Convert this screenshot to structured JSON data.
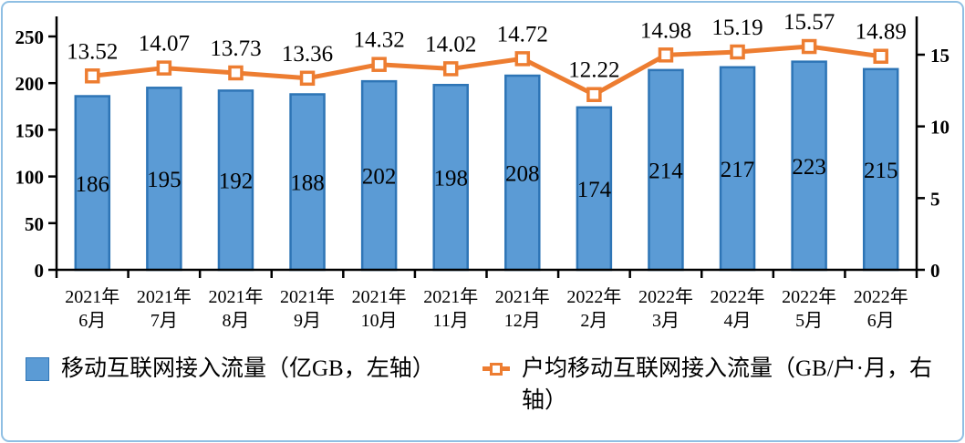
{
  "chart_data": {
    "type": "combo-bar-line",
    "categories": [
      [
        "2021年",
        "6月"
      ],
      [
        "2021年",
        "7月"
      ],
      [
        "2021年",
        "8月"
      ],
      [
        "2021年",
        "9月"
      ],
      [
        "2021年",
        "10月"
      ],
      [
        "2021年",
        "11月"
      ],
      [
        "2021年",
        "12月"
      ],
      [
        "2022年",
        "2月"
      ],
      [
        "2022年",
        "3月"
      ],
      [
        "2022年",
        "4月"
      ],
      [
        "2022年",
        "5月"
      ],
      [
        "2022年",
        "6月"
      ]
    ],
    "series": [
      {
        "name": "移动互联网接入流量（亿GB，左轴）",
        "type": "bar",
        "axis": "left",
        "values": [
          186,
          195,
          192,
          188,
          202,
          198,
          208,
          174,
          214,
          217,
          223,
          215
        ]
      },
      {
        "name": "户均移动互联网接入流量（GB/户·月，右轴）",
        "type": "line",
        "axis": "right",
        "marker": "open-square",
        "values": [
          13.52,
          14.07,
          13.73,
          13.36,
          14.32,
          14.02,
          14.72,
          12.22,
          14.98,
          15.19,
          15.57,
          14.89
        ]
      }
    ],
    "left_axis": {
      "ticks": [
        0,
        50,
        100,
        150,
        200,
        250
      ],
      "max": 250
    },
    "right_axis": {
      "ticks": [
        0,
        5,
        10,
        15
      ],
      "max": 16.25
    },
    "grid": false,
    "legend_position": "bottom",
    "line_label_decimals": 2
  },
  "colors": {
    "bar_fill": "#5B9BD5",
    "bar_border": "#2E75B6",
    "line": "#ED7D31",
    "marker_fill": "#FFFFFF",
    "axis": "#000000",
    "text": "#000000",
    "frame_border": "#8FBFE3",
    "background": "#FFFFFF"
  }
}
